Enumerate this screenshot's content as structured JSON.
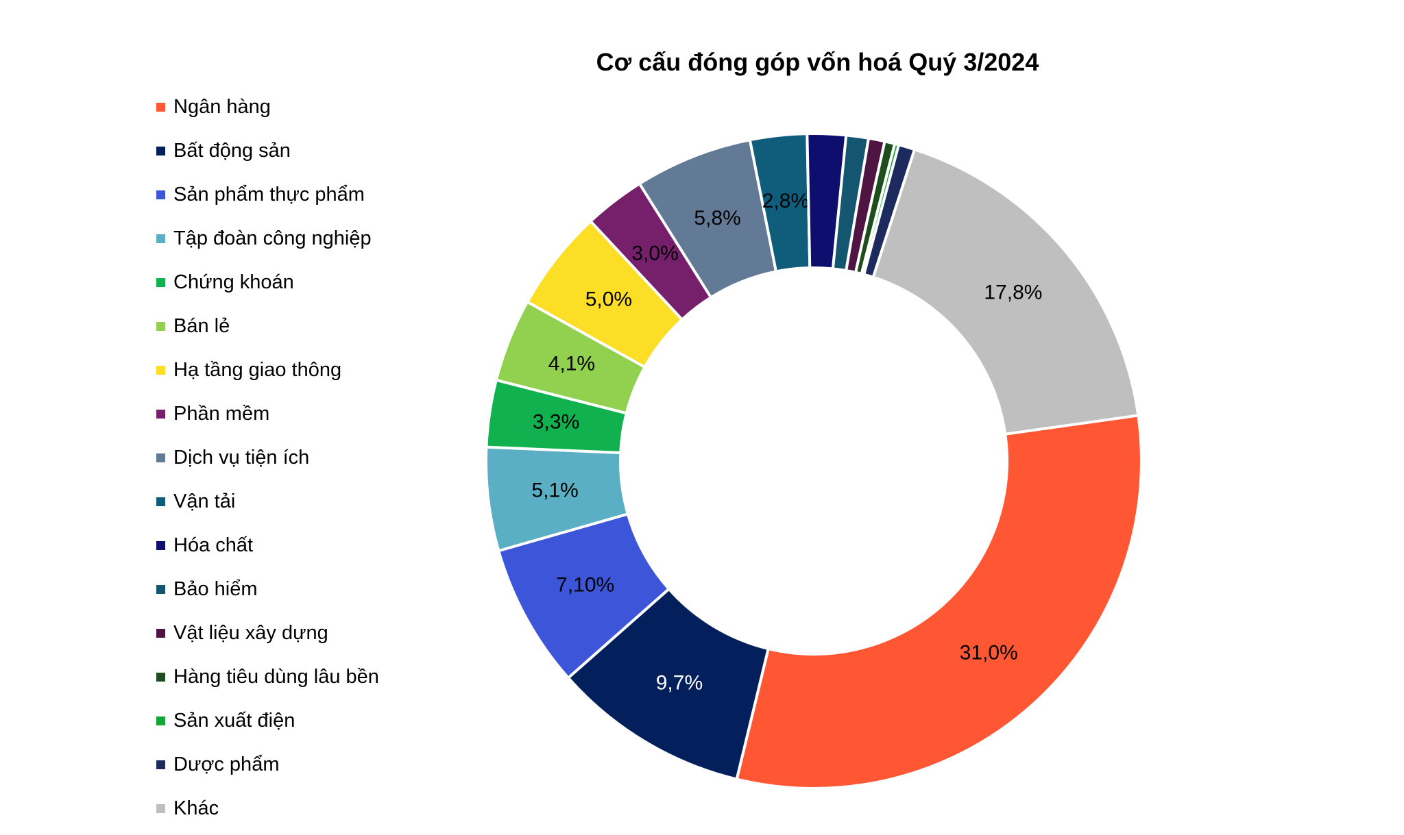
{
  "chart_data": {
    "type": "pie",
    "title": "Cơ cấu đóng góp vốn hoá Quý 3/2024",
    "legend_position": "left",
    "slices": [
      {
        "name": "Ngân hàng",
        "value": 31.0,
        "label": "31,0%",
        "color": "#FF5733",
        "label_color": "#000000"
      },
      {
        "name": "Bất động sản",
        "value": 9.7,
        "label": "9,7%",
        "color": "#03205C",
        "label_color": "#FFFFFF"
      },
      {
        "name": "Sản phẩm thực phẩm",
        "value": 7.1,
        "label": "7,10%",
        "color": "#3D55D8",
        "label_color": "#000000"
      },
      {
        "name": "Tập đoàn công nghiệp",
        "value": 5.1,
        "label": "5,1%",
        "color": "#5AAFC4",
        "label_color": "#000000"
      },
      {
        "name": "Chứng khoán",
        "value": 3.3,
        "label": "3,3%",
        "color": "#10B14E",
        "label_color": "#000000"
      },
      {
        "name": "Bán lẻ",
        "value": 4.1,
        "label": "4,1%",
        "color": "#92D050",
        "label_color": "#000000"
      },
      {
        "name": "Hạ tầng giao thông",
        "value": 5.0,
        "label": "5,0%",
        "color": "#FDDE26",
        "label_color": "#000000"
      },
      {
        "name": "Phần mềm",
        "value": 3.0,
        "label": "3,0%",
        "color": "#76206B",
        "label_color": "#000000"
      },
      {
        "name": "Dịch vụ tiện ích",
        "value": 5.8,
        "label": "5,8%",
        "color": "#627A96",
        "label_color": "#000000"
      },
      {
        "name": "Vận tải",
        "value": 2.8,
        "label": "2,8%",
        "color": "#0F5D7B",
        "label_color": "#000000"
      },
      {
        "name": "Hóa chất",
        "value": 1.9,
        "label": "",
        "color": "#0E0E6E",
        "label_color": "#000000"
      },
      {
        "name": "Bảo hiểm",
        "value": 1.1,
        "label": "",
        "color": "#145670",
        "label_color": "#000000"
      },
      {
        "name": "Vật liệu xây dựng",
        "value": 0.8,
        "label": "",
        "color": "#4E1442",
        "label_color": "#000000"
      },
      {
        "name": "Hàng tiêu dùng lâu bền",
        "value": 0.5,
        "label": "",
        "color": "#1F4E1E",
        "label_color": "#000000"
      },
      {
        "name": "Sản xuất điện",
        "value": 0.2,
        "label": "",
        "color": "#13A538",
        "label_color": "#000000"
      },
      {
        "name": "Dược phẩm",
        "value": 0.8,
        "label": "",
        "color": "#1C2A5E",
        "label_color": "#000000"
      },
      {
        "name": "Khác",
        "value": 17.8,
        "label": "17,8%",
        "color": "#BFBFBF",
        "label_color": "#000000"
      }
    ]
  }
}
